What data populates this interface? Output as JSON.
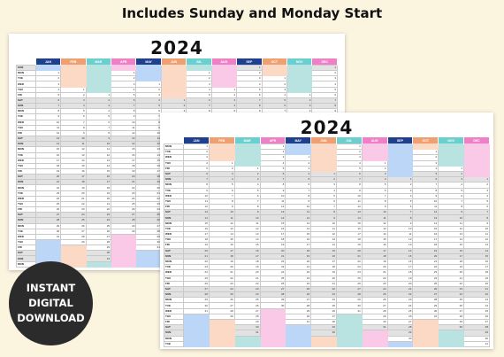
{
  "headline": "Includes Sunday and Monday Start",
  "badge": {
    "line1": "INSTANT",
    "line2": "DIGITAL",
    "line3": "DOWNLOAD"
  },
  "colors": {
    "navy": "#1f3f8f",
    "orange": "#f0a070",
    "teal": "#6ccfcf",
    "pink": "#ef80c8",
    "orange_block": "#fcd9c5",
    "teal_block": "#b8e3e1",
    "pink_block": "#fbc9e8",
    "blue_block": "#bcd6f8"
  },
  "calendars": [
    {
      "id": "back",
      "year": "2024",
      "months": [
        "JAN",
        "FEB",
        "MAR",
        "APR",
        "MAY",
        "JUN",
        "JUL",
        "AUG",
        "SEP",
        "OCT",
        "NOV",
        "DEC"
      ],
      "month_starts": [
        1,
        4,
        5,
        1,
        3,
        6,
        1,
        4,
        0,
        2,
        5,
        0
      ],
      "month_days": [
        31,
        29,
        31,
        30,
        31,
        30,
        31,
        31,
        30,
        31,
        30,
        31
      ],
      "weekdays": [
        "SUN",
        "MON",
        "TUE",
        "WED",
        "THU",
        "FRI",
        "SAT"
      ],
      "weekend_indexes": [
        0,
        6
      ]
    },
    {
      "id": "front",
      "year": "2024",
      "months": [
        "JAN",
        "FEB",
        "MAR",
        "APR",
        "MAY",
        "JUN",
        "JUL",
        "AUG",
        "SEP",
        "OCT",
        "NOV",
        "DEC"
      ],
      "month_starts": [
        0,
        3,
        4,
        0,
        2,
        5,
        0,
        3,
        6,
        1,
        4,
        6
      ],
      "month_days": [
        31,
        29,
        31,
        30,
        31,
        30,
        31,
        31,
        30,
        31,
        30,
        31
      ],
      "weekdays": [
        "MON",
        "TUE",
        "WED",
        "THU",
        "FRI",
        "SAT",
        "SUN"
      ],
      "weekend_indexes": [
        5,
        6
      ]
    }
  ]
}
